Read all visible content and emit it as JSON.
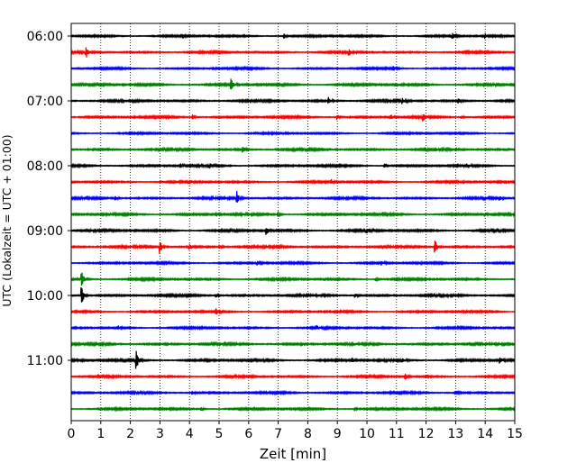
{
  "chart_data": {
    "type": "line",
    "title": "",
    "xlabel": "Zeit  [min]",
    "ylabel": "UTC (Lokalzeit = UTC + 01:00)",
    "xlim": [
      0,
      15
    ],
    "xticks": [
      0,
      1,
      2,
      3,
      4,
      5,
      6,
      7,
      8,
      9,
      10,
      11,
      12,
      13,
      14,
      15
    ],
    "xtick_labels": [
      "0",
      "1",
      "2",
      "3",
      "4",
      "5",
      "6",
      "7",
      "8",
      "9",
      "10",
      "11",
      "12",
      "13",
      "14",
      "15"
    ],
    "yticks": [
      {
        "label": "06:00",
        "row": 0
      },
      {
        "label": "07:00",
        "row": 4
      },
      {
        "label": "08:00",
        "row": 8
      },
      {
        "label": "09:00",
        "row": 12
      },
      {
        "label": "10:00",
        "row": 16
      },
      {
        "label": "11:00",
        "row": 20
      }
    ],
    "grid": "vertical dotted",
    "colors": [
      "#000000",
      "#ff0000",
      "#0000ff",
      "#008000"
    ],
    "series": [
      {
        "start": "06:00",
        "color": "#000000",
        "noise": 0.16,
        "events": [
          {
            "t": 3.8,
            "a": 0.3
          },
          {
            "t": 7.2,
            "a": 0.45
          },
          {
            "t": 12.9,
            "a": 0.55
          },
          {
            "t": 14.0,
            "a": 0.35
          }
        ]
      },
      {
        "start": "06:15",
        "color": "#ff0000",
        "noise": 0.16,
        "events": [
          {
            "t": 0.5,
            "a": 0.95
          },
          {
            "t": 9.4,
            "a": 0.45
          }
        ]
      },
      {
        "start": "06:30",
        "color": "#0000ff",
        "noise": 0.15,
        "events": [
          {
            "t": 10.9,
            "a": 0.55
          },
          {
            "t": 4.8,
            "a": 0.25
          }
        ]
      },
      {
        "start": "06:45",
        "color": "#008000",
        "noise": 0.18,
        "events": [
          {
            "t": 5.4,
            "a": 1.0
          },
          {
            "t": 11.0,
            "a": 0.3
          }
        ]
      },
      {
        "start": "07:00",
        "color": "#000000",
        "noise": 0.18,
        "events": [
          {
            "t": 8.7,
            "a": 0.55
          },
          {
            "t": 11.2,
            "a": 0.45
          },
          {
            "t": 13.1,
            "a": 0.3
          }
        ]
      },
      {
        "start": "07:15",
        "color": "#ff0000",
        "noise": 0.17,
        "events": [
          {
            "t": 4.1,
            "a": 0.45
          },
          {
            "t": 9.0,
            "a": 0.45
          },
          {
            "t": 10.8,
            "a": 0.55
          },
          {
            "t": 11.9,
            "a": 0.55
          },
          {
            "t": 13.2,
            "a": 0.35
          }
        ]
      },
      {
        "start": "07:30",
        "color": "#0000ff",
        "noise": 0.15,
        "events": []
      },
      {
        "start": "07:45",
        "color": "#008000",
        "noise": 0.18,
        "events": [
          {
            "t": 5.8,
            "a": 0.65
          },
          {
            "t": 12.3,
            "a": 0.3
          }
        ]
      },
      {
        "start": "08:00",
        "color": "#000000",
        "noise": 0.17,
        "events": [
          {
            "t": 3.7,
            "a": 0.35
          },
          {
            "t": 4.7,
            "a": 0.3
          },
          {
            "t": 10.6,
            "a": 0.35
          }
        ]
      },
      {
        "start": "08:15",
        "color": "#ff0000",
        "noise": 0.16,
        "events": [
          {
            "t": 4.0,
            "a": 0.3
          },
          {
            "t": 8.8,
            "a": 0.35
          }
        ]
      },
      {
        "start": "08:30",
        "color": "#0000ff",
        "noise": 0.17,
        "events": [
          {
            "t": 1.5,
            "a": 0.35
          },
          {
            "t": 5.6,
            "a": 1.15
          },
          {
            "t": 14.5,
            "a": 0.3
          }
        ]
      },
      {
        "start": "08:45",
        "color": "#008000",
        "noise": 0.18,
        "events": [
          {
            "t": 7.0,
            "a": 0.45
          },
          {
            "t": 4.9,
            "a": 0.35
          },
          {
            "t": 14.0,
            "a": 0.3
          }
        ]
      },
      {
        "start": "09:00",
        "color": "#000000",
        "noise": 0.18,
        "events": [
          {
            "t": 6.6,
            "a": 0.75
          },
          {
            "t": 10.0,
            "a": 0.35
          }
        ]
      },
      {
        "start": "09:15",
        "color": "#ff0000",
        "noise": 0.18,
        "events": [
          {
            "t": 3.0,
            "a": 1.25
          },
          {
            "t": 12.3,
            "a": 1.45
          },
          {
            "t": 4.0,
            "a": 0.4
          },
          {
            "t": 5.0,
            "a": 0.4
          },
          {
            "t": 7.1,
            "a": 0.35
          }
        ]
      },
      {
        "start": "09:30",
        "color": "#0000ff",
        "noise": 0.16,
        "events": [
          {
            "t": 6.3,
            "a": 0.35
          },
          {
            "t": 10.5,
            "a": 0.3
          }
        ]
      },
      {
        "start": "09:45",
        "color": "#008000",
        "noise": 0.17,
        "events": [
          {
            "t": 0.35,
            "a": 1.6
          },
          {
            "t": 10.3,
            "a": 0.3
          }
        ]
      },
      {
        "start": "10:00",
        "color": "#000000",
        "noise": 0.18,
        "events": [
          {
            "t": 0.35,
            "a": 2.0
          },
          {
            "t": 4.9,
            "a": 0.35
          },
          {
            "t": 9.6,
            "a": 0.4
          }
        ]
      },
      {
        "start": "10:15",
        "color": "#ff0000",
        "noise": 0.16,
        "events": [
          {
            "t": 4.9,
            "a": 0.45
          },
          {
            "t": 13.3,
            "a": 0.3
          }
        ]
      },
      {
        "start": "10:30",
        "color": "#0000ff",
        "noise": 0.16,
        "events": [
          {
            "t": 1.6,
            "a": 0.3
          },
          {
            "t": 8.3,
            "a": 0.3
          }
        ]
      },
      {
        "start": "10:45",
        "color": "#008000",
        "noise": 0.19,
        "events": [
          {
            "t": 7.8,
            "a": 0.3
          }
        ]
      },
      {
        "start": "11:00",
        "color": "#000000",
        "noise": 0.18,
        "events": [
          {
            "t": 2.2,
            "a": 1.6
          },
          {
            "t": 9.5,
            "a": 0.35
          },
          {
            "t": 11.2,
            "a": 0.35
          },
          {
            "t": 14.5,
            "a": 0.5
          }
        ]
      },
      {
        "start": "11:15",
        "color": "#ff0000",
        "noise": 0.16,
        "events": [
          {
            "t": 11.3,
            "a": 0.55
          },
          {
            "t": 12.0,
            "a": 0.3
          }
        ]
      },
      {
        "start": "11:30",
        "color": "#0000ff",
        "noise": 0.17,
        "events": [
          {
            "t": 13.0,
            "a": 0.4
          },
          {
            "t": 4.1,
            "a": 0.3
          }
        ]
      },
      {
        "start": "11:45",
        "color": "#008000",
        "noise": 0.17,
        "events": [
          {
            "t": 4.4,
            "a": 0.4
          },
          {
            "t": 9.6,
            "a": 0.3
          }
        ]
      }
    ]
  }
}
